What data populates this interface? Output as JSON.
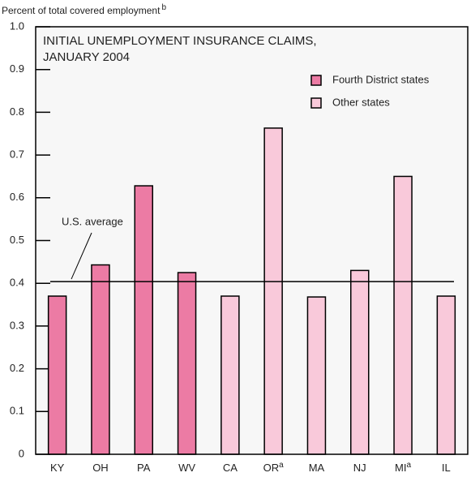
{
  "chart_data": {
    "type": "bar",
    "title": [
      "INITIAL UNEMPLOYMENT INSURANCE CLAIMS,",
      "JANUARY 2004"
    ],
    "y_label": "Percent of total covered employment",
    "y_label_note": "b",
    "categories": [
      "KY",
      "OH",
      "PA",
      "WV",
      "CA",
      "OR",
      "MA",
      "NJ",
      "MI",
      "IL"
    ],
    "category_notes": [
      null,
      null,
      null,
      null,
      null,
      "a",
      null,
      null,
      "a",
      null
    ],
    "series": [
      {
        "name": "Fourth District states",
        "color": "#ec7ba4",
        "values": [
          0.37,
          0.443,
          0.628,
          0.425,
          null,
          null,
          null,
          null,
          null,
          null
        ]
      },
      {
        "name": "Other states",
        "color": "#f9c9da",
        "values": [
          null,
          null,
          null,
          null,
          0.37,
          0.763,
          0.368,
          0.43,
          0.65,
          0.37
        ]
      }
    ],
    "reference_line": {
      "label": "U.S. average",
      "value": 0.404
    },
    "ylim": [
      0,
      1
    ],
    "yticks": [
      0,
      0.1,
      0.2,
      0.3,
      0.4,
      0.5,
      0.6,
      0.7,
      0.8,
      0.9,
      {
        "value": 1,
        "label": "1.0"
      }
    ],
    "legend": "upper right"
  }
}
